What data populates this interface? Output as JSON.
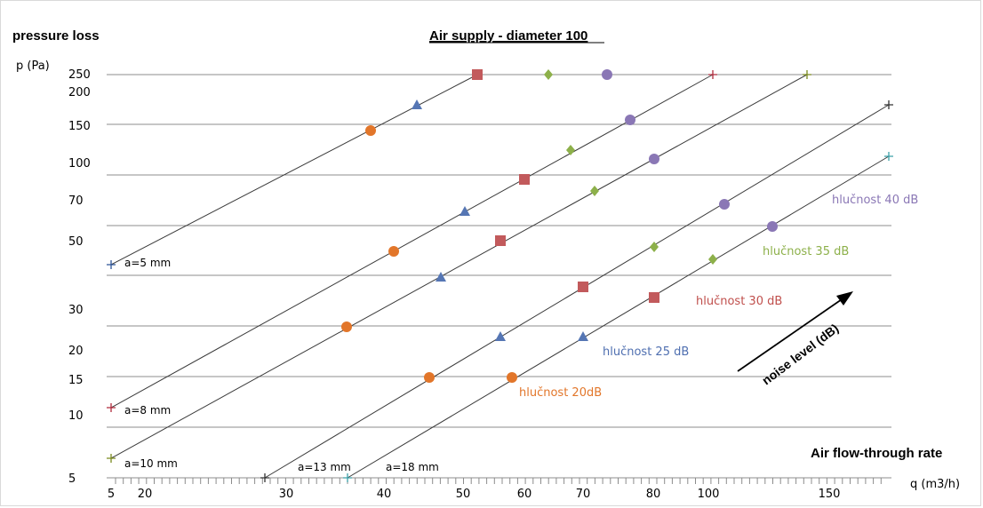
{
  "chart_data": {
    "type": "line",
    "title": "Air supply - diameter 100",
    "ylabel_top": "pressure loss",
    "ylabel": "p (Pa)",
    "xlabel_top": "Air flow-through rate",
    "xlabel": "q (m3/h)",
    "y_ticks": [
      "250",
      "200",
      "150",
      "100",
      "70",
      "50",
      "30",
      "20",
      "15",
      "10",
      "5"
    ],
    "x_ticks": [
      "5",
      "20",
      "30",
      "40",
      "50",
      "60",
      "70",
      "80",
      "100",
      "150"
    ],
    "grid": "horizontal",
    "lines": [
      {
        "name": "a=5 mm",
        "color": "#2e5597",
        "x": [
          5,
          52
        ],
        "y": [
          45,
          250
        ]
      },
      {
        "name": "a=8 mm",
        "color": "#b02b3c",
        "x": [
          5,
          102
        ],
        "y": [
          11,
          250
        ]
      },
      {
        "name": "a=10 mm",
        "color": "#7a8a1e",
        "x": [
          5,
          143
        ],
        "y": [
          6.5,
          250
        ]
      },
      {
        "name": "a=13 mm",
        "color": "#333333",
        "x": [
          28,
          162
        ],
        "y": [
          5,
          185
        ]
      },
      {
        "name": "a=18 mm",
        "color": "#3ba0a8",
        "x": [
          36,
          162
        ],
        "y": [
          5,
          117
        ]
      }
    ],
    "series": [
      {
        "name": "hlučnost 20dB",
        "color": "#e2762a",
        "marker": "circle",
        "points": [
          [
            38.5,
            145
          ],
          [
            41.5,
            48
          ],
          [
            36,
            28
          ],
          [
            45.5,
            15
          ],
          [
            58.5,
            15
          ]
        ]
      },
      {
        "name": "hlučnost 25 dB",
        "color": "#5576b4",
        "marker": "triangle",
        "points": [
          [
            44,
            178
          ],
          [
            50,
            67
          ],
          [
            47,
            41
          ],
          [
            56,
            24
          ],
          [
            70,
            24
          ]
        ]
      },
      {
        "name": "hlučnost 30 dB",
        "color": "#c25a5c",
        "marker": "square",
        "points": [
          [
            52,
            250
          ],
          [
            60,
            90
          ],
          [
            56,
            52
          ],
          [
            70,
            36
          ],
          [
            85,
            35
          ]
        ]
      },
      {
        "name": "hlučnost 35 dB",
        "color": "#8db04a",
        "marker": "diamond",
        "points": [
          [
            64,
            250
          ],
          [
            68,
            112
          ],
          [
            71,
            79
          ],
          [
            85,
            45
          ],
          [
            102,
            37
          ]
        ]
      },
      {
        "name": "hlučnost 40 dB",
        "color": "#8a77b5",
        "marker": "circle",
        "points": [
          [
            72,
            250
          ],
          [
            76,
            158
          ],
          [
            85,
            108
          ],
          [
            108,
            69
          ],
          [
            138,
            56
          ]
        ]
      }
    ],
    "annotations": {
      "arrow_label": "noise level (dB)"
    }
  }
}
